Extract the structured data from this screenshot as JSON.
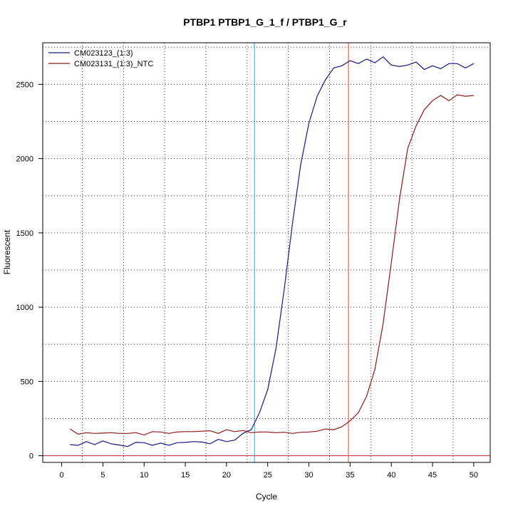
{
  "chart_data": {
    "type": "line",
    "title": "PTBP1  PTBP1_G_1_f / PTBP1_G_r",
    "xlabel": "Cycle",
    "ylabel": "Fluorescent",
    "xlim": [
      -2.3,
      52
    ],
    "ylim": [
      -45,
      2780
    ],
    "x_ticks": [
      0,
      5,
      10,
      15,
      20,
      25,
      30,
      35,
      40,
      45,
      50
    ],
    "y_ticks": [
      0,
      500,
      1000,
      1500,
      2000,
      2500
    ],
    "legend_position": "top-left",
    "grid": "dotted",
    "vertical_lines": [
      {
        "x": 23.4,
        "color": "#00dddd"
      },
      {
        "x": 34.8,
        "color": "#ff5c5c"
      }
    ],
    "horizontal_lines": [
      {
        "y": 0,
        "color": "#cc2222"
      }
    ],
    "series": [
      {
        "name": "CM023123_(1:3)",
        "color": "#1a1a80",
        "x": [
          1,
          2,
          3,
          4,
          5,
          6,
          7,
          8,
          9,
          10,
          11,
          12,
          13,
          14,
          15,
          16,
          17,
          18,
          19,
          20,
          21,
          22,
          23,
          24,
          25,
          26,
          27,
          28,
          29,
          30,
          31,
          32,
          33,
          34,
          35,
          36,
          37,
          38,
          39,
          40,
          41,
          42,
          43,
          44,
          45,
          46,
          47,
          48,
          49,
          50
        ],
        "values": [
          75,
          70,
          95,
          75,
          100,
          80,
          72,
          62,
          90,
          88,
          70,
          85,
          70,
          88,
          90,
          95,
          92,
          80,
          110,
          95,
          105,
          150,
          175,
          290,
          445,
          720,
          1120,
          1560,
          1960,
          2240,
          2420,
          2530,
          2610,
          2625,
          2660,
          2640,
          2670,
          2645,
          2685,
          2630,
          2620,
          2630,
          2650,
          2600,
          2625,
          2605,
          2640,
          2640,
          2610,
          2640
        ]
      },
      {
        "name": "CM023131_(1:3)_NTC",
        "color": "#8b1a1a",
        "x": [
          1,
          2,
          3,
          4,
          5,
          6,
          7,
          8,
          9,
          10,
          11,
          12,
          13,
          14,
          15,
          16,
          17,
          18,
          19,
          20,
          21,
          22,
          23,
          24,
          25,
          26,
          27,
          28,
          29,
          30,
          31,
          32,
          33,
          34,
          35,
          36,
          37,
          38,
          39,
          40,
          41,
          42,
          43,
          44,
          45,
          46,
          47,
          48,
          49,
          50
        ],
        "values": [
          180,
          145,
          155,
          150,
          152,
          155,
          150,
          150,
          155,
          140,
          162,
          160,
          150,
          160,
          162,
          162,
          165,
          168,
          150,
          175,
          162,
          170,
          155,
          160,
          160,
          155,
          158,
          150,
          158,
          160,
          165,
          180,
          175,
          195,
          235,
          290,
          400,
          580,
          890,
          1300,
          1730,
          2070,
          2220,
          2330,
          2390,
          2425,
          2390,
          2430,
          2420,
          2425
        ]
      }
    ]
  }
}
